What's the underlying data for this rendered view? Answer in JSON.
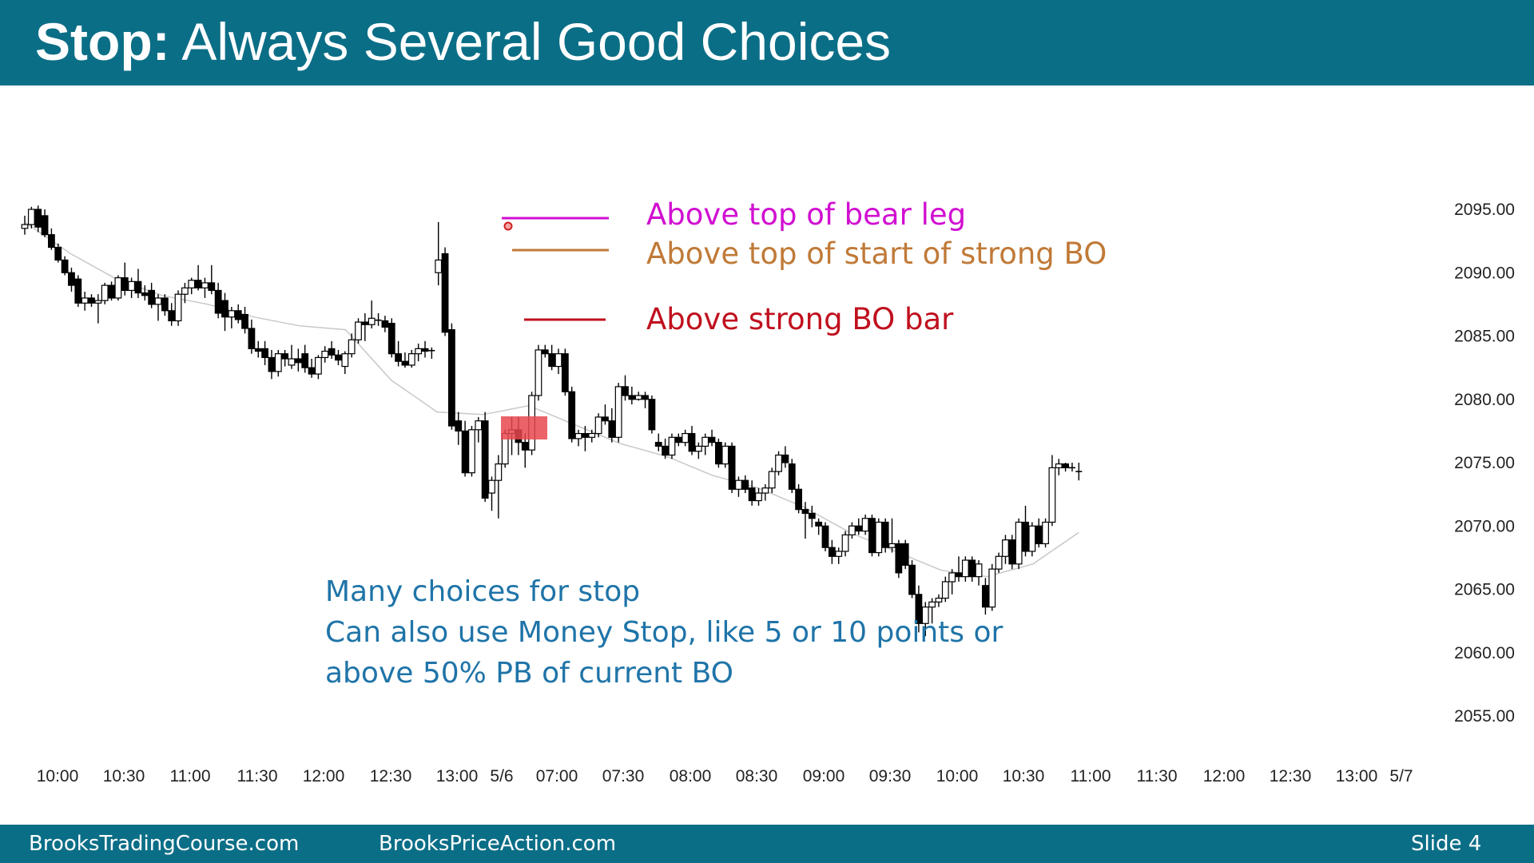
{
  "slide": {
    "title_bold": "Stop:",
    "title_rest": "Always Several Good Choices"
  },
  "annotations": [
    {
      "text": "Above top of bear leg",
      "color": "#d10fd1"
    },
    {
      "text": "Above top of start of strong BO",
      "color": "#c07a38"
    },
    {
      "text": "Above strong BO bar",
      "color": "#c0101e"
    }
  ],
  "note": {
    "line1": "Many choices for stop",
    "line2": "Can also use Money Stop, like 5 or 10 points or",
    "line3": "above 50% PB of current BO"
  },
  "footer": {
    "left": "BrooksTradingCourse.com",
    "center": "BrooksPriceAction.com",
    "slide_label": "Slide  4"
  },
  "chart_data": {
    "type": "candlestick",
    "y_tick_labels": [
      "2095.00",
      "2090.00",
      "2085.00",
      "2080.00",
      "2075.00",
      "2070.00",
      "2065.00",
      "2060.00",
      "2055.00"
    ],
    "y_ticks": [
      2095,
      2090,
      2085,
      2080,
      2075,
      2070,
      2065,
      2060,
      2055
    ],
    "ylim": [
      2052,
      2098
    ],
    "x_tick_labels": [
      "10:00",
      "10:30",
      "11:00",
      "11:30",
      "12:00",
      "12:30",
      "13:00",
      "5/6",
      "07:00",
      "07:30",
      "08:00",
      "08:30",
      "09:00",
      "09:30",
      "10:00",
      "10:30",
      "11:00",
      "11:30",
      "12:00",
      "12:30",
      "13:00",
      "5/7"
    ],
    "ma_color": "#c8c8c8",
    "ma": [
      2094.0,
      2091.5,
      2089.5,
      2088.2,
      2087.5,
      2086.5,
      2085.8,
      2085.5,
      2081.5,
      2079.0,
      2078.8,
      2079.5,
      2078.0,
      2076.5,
      2075.5,
      2074.0,
      2073.0,
      2071.5,
      2069.5,
      2068.0,
      2066.5,
      2066.0,
      2067.0,
      2069.5
    ],
    "candles": [
      [
        2093.5,
        2094.5,
        2093.0,
        2093.8
      ],
      [
        2093.8,
        2095.2,
        2093.5,
        2095.0
      ],
      [
        2095.0,
        2095.3,
        2093.2,
        2093.6
      ],
      [
        2094.5,
        2095.0,
        2092.8,
        2093.0
      ],
      [
        2093.0,
        2093.5,
        2091.8,
        2092.0
      ],
      [
        2092.0,
        2092.3,
        2090.8,
        2091.0
      ],
      [
        2091.0,
        2091.3,
        2089.8,
        2090.0
      ],
      [
        2090.0,
        2090.4,
        2088.5,
        2089.0
      ],
      [
        2089.5,
        2089.8,
        2087.3,
        2087.6
      ],
      [
        2087.6,
        2088.5,
        2087.0,
        2088.0
      ],
      [
        2088.0,
        2088.3,
        2087.3,
        2087.6
      ],
      [
        2087.6,
        2088.3,
        2086.0,
        2087.8
      ],
      [
        2087.8,
        2089.2,
        2087.5,
        2089.0
      ],
      [
        2089.0,
        2089.3,
        2087.8,
        2088.0
      ],
      [
        2088.0,
        2089.8,
        2087.8,
        2089.6
      ],
      [
        2089.6,
        2090.8,
        2088.2,
        2088.6
      ],
      [
        2088.6,
        2089.6,
        2088.0,
        2089.3
      ],
      [
        2089.3,
        2090.3,
        2088.0,
        2088.4
      ],
      [
        2088.4,
        2089.0,
        2087.8,
        2088.2
      ],
      [
        2088.6,
        2089.2,
        2087.2,
        2087.5
      ],
      [
        2087.5,
        2088.3,
        2086.2,
        2088.0
      ],
      [
        2088.0,
        2088.3,
        2086.6,
        2087.0
      ],
      [
        2087.0,
        2087.6,
        2085.8,
        2086.2
      ],
      [
        2086.2,
        2088.6,
        2085.8,
        2088.3
      ],
      [
        2088.3,
        2089.2,
        2087.6,
        2088.8
      ],
      [
        2088.8,
        2089.6,
        2088.3,
        2089.4
      ],
      [
        2089.4,
        2090.6,
        2088.6,
        2088.8
      ],
      [
        2088.8,
        2089.6,
        2088.0,
        2089.2
      ],
      [
        2089.2,
        2090.6,
        2088.3,
        2088.6
      ],
      [
        2088.6,
        2089.2,
        2086.4,
        2086.8
      ],
      [
        2087.8,
        2088.4,
        2085.4,
        2086.5
      ],
      [
        2086.5,
        2087.3,
        2085.6,
        2087.0
      ],
      [
        2087.0,
        2087.5,
        2086.0,
        2086.3
      ],
      [
        2086.7,
        2087.3,
        2085.2,
        2085.6
      ],
      [
        2085.6,
        2086.3,
        2083.6,
        2084.0
      ],
      [
        2084.0,
        2084.6,
        2083.3,
        2083.8
      ],
      [
        2084.0,
        2084.6,
        2082.7,
        2083.3
      ],
      [
        2083.3,
        2083.9,
        2081.6,
        2082.2
      ],
      [
        2082.2,
        2083.9,
        2081.8,
        2083.6
      ],
      [
        2083.6,
        2083.9,
        2082.6,
        2083.2
      ],
      [
        2082.7,
        2084.3,
        2082.4,
        2083.2
      ],
      [
        2083.2,
        2084.0,
        2082.2,
        2082.9
      ],
      [
        2083.6,
        2084.3,
        2082.1,
        2082.5
      ],
      [
        2082.5,
        2083.2,
        2081.7,
        2082.0
      ],
      [
        2082.0,
        2083.5,
        2081.6,
        2083.3
      ],
      [
        2083.3,
        2084.2,
        2082.9,
        2083.8
      ],
      [
        2084.0,
        2084.6,
        2083.2,
        2083.5
      ],
      [
        2083.5,
        2083.9,
        2082.7,
        2083.1
      ],
      [
        2082.6,
        2083.8,
        2082.0,
        2083.6
      ],
      [
        2083.6,
        2085.2,
        2083.3,
        2084.7
      ],
      [
        2084.7,
        2086.4,
        2084.4,
        2086.1
      ],
      [
        2086.1,
        2086.8,
        2084.6,
        2085.9
      ],
      [
        2085.9,
        2087.8,
        2085.6,
        2086.4
      ],
      [
        2086.3,
        2086.8,
        2085.8,
        2086.2
      ],
      [
        2086.2,
        2086.6,
        2085.3,
        2085.7
      ],
      [
        2086.0,
        2086.4,
        2083.3,
        2083.6
      ],
      [
        2083.6,
        2084.6,
        2082.6,
        2083.0
      ],
      [
        2083.0,
        2083.7,
        2082.5,
        2082.7
      ],
      [
        2082.7,
        2083.9,
        2082.5,
        2083.6
      ],
      [
        2083.6,
        2084.4,
        2083.0,
        2084.0
      ],
      [
        2084.0,
        2084.6,
        2083.3,
        2083.8
      ],
      [
        2083.8,
        2084.1,
        2083.2,
        2083.9
      ],
      [
        2090.0,
        2094.0,
        2089.0,
        2091.0
      ],
      [
        2091.5,
        2092.0,
        2085.0,
        2085.3
      ],
      [
        2085.5,
        2086.0,
        2077.6,
        2077.9
      ],
      [
        2078.3,
        2079.0,
        2076.4,
        2077.5
      ],
      [
        2077.5,
        2078.3,
        2073.9,
        2074.2
      ],
      [
        2074.2,
        2077.9,
        2073.9,
        2077.6
      ],
      [
        2077.6,
        2078.6,
        2076.6,
        2078.3
      ],
      [
        2078.3,
        2079.0,
        2071.9,
        2072.2
      ],
      [
        2072.6,
        2073.9,
        2071.2,
        2073.6
      ],
      [
        2073.6,
        2075.6,
        2070.6,
        2074.9
      ],
      [
        2074.9,
        2077.6,
        2074.6,
        2077.3
      ],
      [
        2077.3,
        2078.6,
        2075.6,
        2077.6
      ],
      [
        2077.6,
        2078.6,
        2075.6,
        2076.6
      ],
      [
        2076.6,
        2077.3,
        2074.6,
        2076.0
      ],
      [
        2076.0,
        2080.6,
        2075.6,
        2080.3
      ],
      [
        2080.3,
        2084.3,
        2079.9,
        2083.9
      ],
      [
        2083.9,
        2084.3,
        2083.3,
        2083.6
      ],
      [
        2083.6,
        2084.3,
        2082.3,
        2082.6
      ],
      [
        2082.6,
        2084.0,
        2082.0,
        2083.6
      ],
      [
        2083.6,
        2084.0,
        2080.3,
        2080.6
      ],
      [
        2080.6,
        2081.0,
        2076.6,
        2076.9
      ],
      [
        2076.9,
        2077.6,
        2076.3,
        2077.3
      ],
      [
        2077.3,
        2077.9,
        2075.9,
        2077.0
      ],
      [
        2077.0,
        2077.6,
        2076.6,
        2077.3
      ],
      [
        2077.3,
        2078.9,
        2077.0,
        2078.6
      ],
      [
        2078.6,
        2079.6,
        2078.0,
        2078.3
      ],
      [
        2078.3,
        2079.3,
        2076.6,
        2077.0
      ],
      [
        2077.0,
        2081.3,
        2076.6,
        2081.0
      ],
      [
        2081.0,
        2081.9,
        2079.9,
        2080.3
      ],
      [
        2080.3,
        2081.0,
        2079.6,
        2080.0
      ],
      [
        2080.0,
        2080.6,
        2079.9,
        2080.3
      ],
      [
        2080.3,
        2080.6,
        2079.3,
        2080.0
      ],
      [
        2080.0,
        2080.3,
        2077.3,
        2077.6
      ],
      [
        2076.6,
        2077.3,
        2075.9,
        2076.3
      ],
      [
        2076.3,
        2076.9,
        2075.3,
        2075.6
      ],
      [
        2075.6,
        2077.3,
        2075.3,
        2077.0
      ],
      [
        2077.0,
        2077.3,
        2076.3,
        2076.6
      ],
      [
        2076.6,
        2077.6,
        2076.3,
        2077.3
      ],
      [
        2077.3,
        2077.9,
        2075.6,
        2075.9
      ],
      [
        2075.9,
        2076.6,
        2075.3,
        2076.3
      ],
      [
        2076.3,
        2077.3,
        2075.6,
        2077.0
      ],
      [
        2077.0,
        2077.6,
        2076.3,
        2076.6
      ],
      [
        2076.6,
        2076.9,
        2074.6,
        2074.9
      ],
      [
        2074.9,
        2076.6,
        2074.6,
        2076.3
      ],
      [
        2076.3,
        2076.6,
        2072.6,
        2072.9
      ],
      [
        2072.9,
        2073.9,
        2072.3,
        2073.6
      ],
      [
        2073.6,
        2074.0,
        2072.6,
        2072.9
      ],
      [
        2073.0,
        2073.6,
        2071.6,
        2072.0
      ],
      [
        2072.0,
        2073.0,
        2071.6,
        2072.6
      ],
      [
        2072.6,
        2073.3,
        2072.0,
        2073.0
      ],
      [
        2073.0,
        2074.6,
        2072.6,
        2074.3
      ],
      [
        2074.3,
        2075.9,
        2074.0,
        2075.6
      ],
      [
        2075.6,
        2076.3,
        2074.6,
        2075.0
      ],
      [
        2074.9,
        2075.3,
        2072.6,
        2072.9
      ],
      [
        2072.9,
        2073.3,
        2071.0,
        2071.3
      ],
      [
        2071.3,
        2071.9,
        2069.0,
        2071.0
      ],
      [
        2071.0,
        2071.6,
        2069.9,
        2070.6
      ],
      [
        2070.3,
        2070.6,
        2069.3,
        2070.0
      ],
      [
        2070.0,
        2070.3,
        2068.0,
        2068.3
      ],
      [
        2068.3,
        2068.9,
        2067.0,
        2067.6
      ],
      [
        2067.6,
        2068.3,
        2067.0,
        2068.0
      ],
      [
        2068.0,
        2069.6,
        2067.6,
        2069.3
      ],
      [
        2069.3,
        2070.3,
        2069.0,
        2070.0
      ],
      [
        2070.0,
        2070.6,
        2069.3,
        2069.6
      ],
      [
        2069.6,
        2070.9,
        2069.3,
        2070.6
      ],
      [
        2070.6,
        2070.9,
        2067.6,
        2067.9
      ],
      [
        2067.9,
        2070.6,
        2067.6,
        2070.3
      ],
      [
        2070.3,
        2070.6,
        2067.9,
        2068.3
      ],
      [
        2068.3,
        2070.6,
        2067.9,
        2068.6
      ],
      [
        2068.6,
        2068.9,
        2065.9,
        2066.3
      ],
      [
        2068.6,
        2068.9,
        2066.6,
        2066.9
      ],
      [
        2066.9,
        2067.3,
        2064.3,
        2064.6
      ],
      [
        2064.6,
        2065.3,
        2061.6,
        2062.3
      ],
      [
        2062.3,
        2064.0,
        2061.3,
        2063.6
      ],
      [
        2063.6,
        2064.3,
        2062.3,
        2064.0
      ],
      [
        2064.0,
        2064.6,
        2063.6,
        2064.3
      ],
      [
        2064.3,
        2066.0,
        2064.0,
        2065.6
      ],
      [
        2065.6,
        2066.6,
        2064.6,
        2066.3
      ],
      [
        2066.3,
        2067.6,
        2065.6,
        2066.0
      ],
      [
        2066.0,
        2067.6,
        2065.6,
        2067.3
      ],
      [
        2067.3,
        2067.6,
        2065.6,
        2066.0
      ],
      [
        2066.0,
        2067.3,
        2065.3,
        2067.0
      ],
      [
        2065.3,
        2065.9,
        2063.0,
        2063.6
      ],
      [
        2063.6,
        2067.0,
        2063.3,
        2066.6
      ],
      [
        2066.6,
        2067.9,
        2066.3,
        2067.6
      ],
      [
        2067.6,
        2069.3,
        2067.0,
        2068.9
      ],
      [
        2068.9,
        2069.3,
        2066.6,
        2067.0
      ],
      [
        2067.0,
        2070.6,
        2066.6,
        2070.3
      ],
      [
        2070.3,
        2071.6,
        2067.6,
        2068.0
      ],
      [
        2068.0,
        2070.3,
        2067.6,
        2070.0
      ],
      [
        2070.0,
        2070.6,
        2068.3,
        2068.6
      ],
      [
        2068.6,
        2070.6,
        2068.3,
        2070.3
      ],
      [
        2070.3,
        2075.6,
        2070.0,
        2074.6
      ],
      [
        2074.6,
        2075.3,
        2074.0,
        2074.9
      ],
      [
        2074.9,
        2075.0,
        2074.3,
        2074.6
      ],
      [
        2074.6,
        2075.0,
        2074.3,
        2074.6
      ],
      [
        2074.3,
        2075.0,
        2073.6,
        2074.3
      ]
    ]
  }
}
